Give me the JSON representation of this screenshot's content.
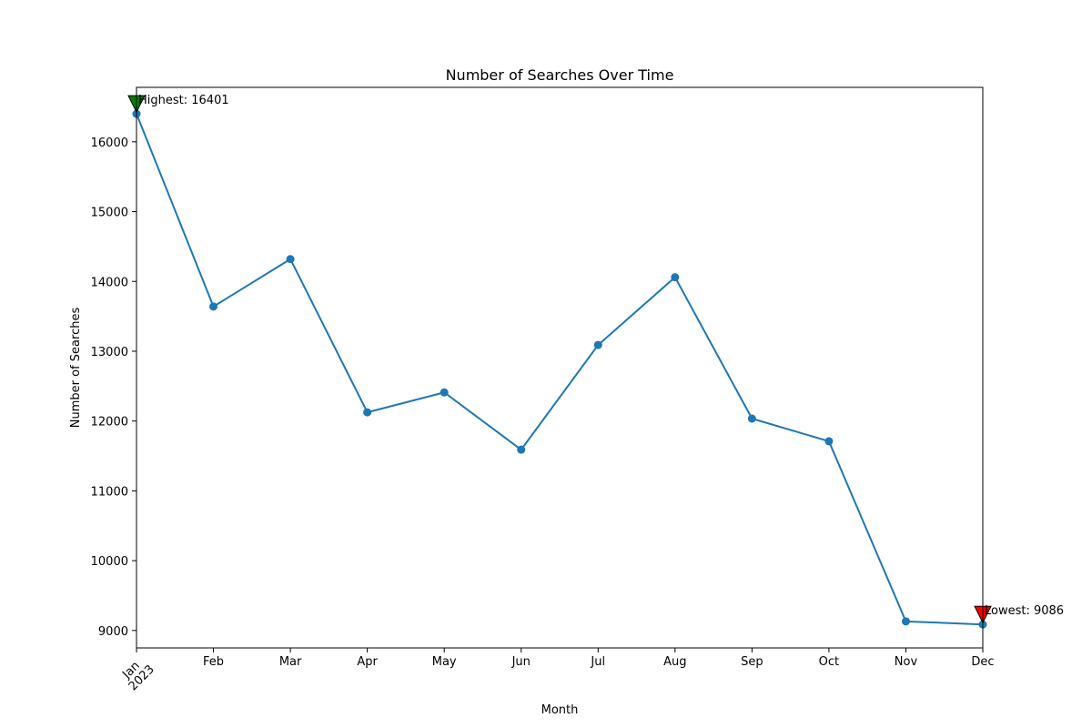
{
  "chart_data": {
    "type": "line",
    "title": "Number of Searches Over Time",
    "xlabel": "Month",
    "ylabel": "Number of Searches",
    "categories": [
      "Jan",
      "Feb",
      "Mar",
      "Apr",
      "May",
      "Jun",
      "Jul",
      "Aug",
      "Sep",
      "Oct",
      "Nov",
      "Dec"
    ],
    "year_label": "2023",
    "series": [
      {
        "values": [
          16401,
          13640,
          14320,
          12125,
          12410,
          11590,
          13090,
          14060,
          12035,
          11710,
          9130,
          9086
        ],
        "color": "#1f77b4",
        "marker": "circle"
      }
    ],
    "ylim": [
      8750,
      16780
    ],
    "yticks": [
      9000,
      10000,
      11000,
      12000,
      13000,
      14000,
      15000,
      16000
    ],
    "grid": false,
    "annotations": {
      "highest": {
        "label": "Highest: 16401",
        "category": "Jan",
        "value": 16401,
        "marker_color": "#008000"
      },
      "lowest": {
        "label": "Lowest: 9086",
        "category": "Dec",
        "value": 9086,
        "marker_color": "#ff0000"
      }
    }
  }
}
